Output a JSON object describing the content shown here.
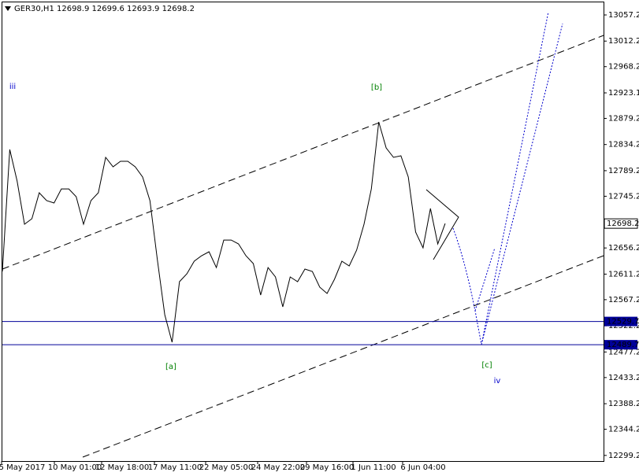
{
  "chart_data": {
    "type": "line",
    "title": "GER30,H1  12698.9 12699.6 12693.9 12698.2",
    "xtick_labels": [
      "5 May 2017",
      "10 May 01:00",
      "12 May 18:00",
      "17 May 11:00",
      "22 May 05:00",
      "24 May 22:00",
      "29 May 16:00",
      "1 Jun 11:00",
      "6 Jun 04:00"
    ],
    "series": [
      {
        "name": "GER30",
        "color": "#000000",
        "values": [
          12615.8,
          12825.7,
          12771.5,
          12697.0,
          12706.5,
          12751.2,
          12737.7,
          12733.6,
          12757.8,
          12757.8,
          12744.4,
          12697.0,
          12737.7,
          12751.2,
          12812.1,
          12795.9,
          12805.4,
          12805.4,
          12795.9,
          12778.3,
          12737.7,
          12636.1,
          12541.3,
          12494.0,
          12598.2,
          12611.7,
          12633.4,
          12642.9,
          12649.6,
          12622.5,
          12669.8,
          12669.8,
          12663.2,
          12642.9,
          12629.3,
          12575.2,
          12622.5,
          12606.3,
          12554.9,
          12606.3,
          12598.2,
          12619.8,
          12615.8,
          12588.7,
          12577.9,
          12602.3,
          12633.4,
          12625.3,
          12652.4,
          12697.0,
          12757.8,
          12873.0,
          12828.4,
          12812.1,
          12814.8,
          12778.3,
          12683.5,
          12656.4,
          12724.1,
          12663.2,
          12698.2
        ]
      }
    ],
    "ylim": [
      12289.5,
      13080.2
    ],
    "yticks": [
      13057.2,
      13012.2,
      12968.2,
      12923.1,
      12879.2,
      12834.2,
      12789.2,
      12745.2,
      12656.2,
      12611.2,
      12567.2,
      12522.2,
      12477.2,
      12433.2,
      12388.2,
      12344.2,
      12299.2
    ],
    "levels": [
      {
        "value": 12529.7,
        "color": "#000099"
      },
      {
        "value": 12489.7,
        "color": "#000099"
      }
    ],
    "last_price": 12698.2,
    "annotations": [
      {
        "text": "iii",
        "color": "#0000cc"
      },
      {
        "text": "[b]",
        "color": "#008000"
      },
      {
        "text": "[a]",
        "color": "#008000"
      },
      {
        "text": "[c]",
        "color": "#008000"
      },
      {
        "text": "iv",
        "color": "#0000cc"
      }
    ]
  }
}
